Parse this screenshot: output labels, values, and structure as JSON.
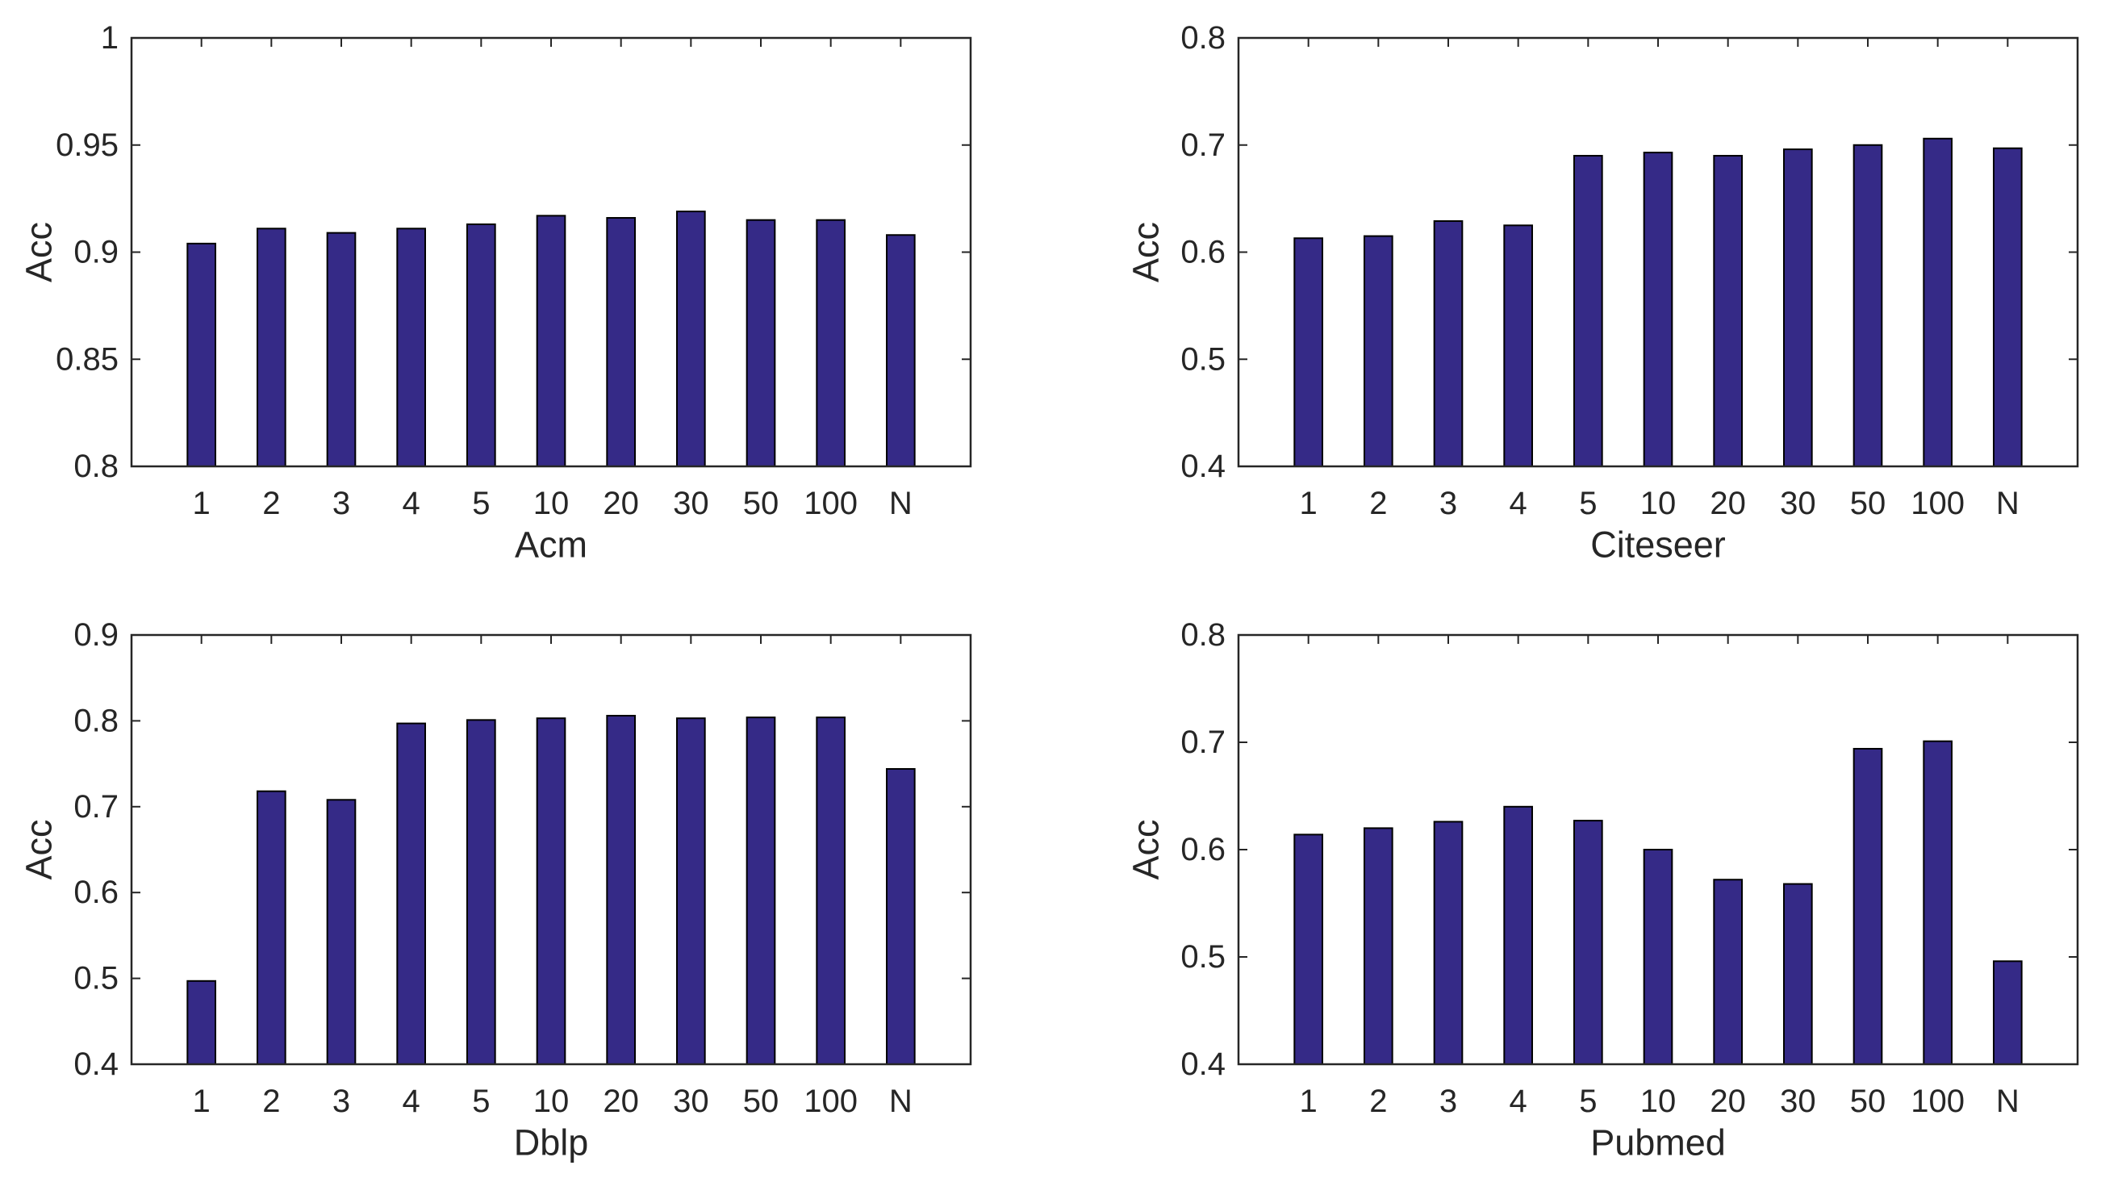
{
  "figure": {
    "background": "#ffffff",
    "bar_fill_color": "#352A87",
    "bar_edge_color": "#000000",
    "axis_color": "#262626",
    "text_color": "#262626"
  },
  "chart_data": [
    {
      "id": "acm",
      "type": "bar",
      "title": "",
      "xlabel": "Acm",
      "ylabel": "Acc",
      "categories": [
        "1",
        "2",
        "3",
        "4",
        "5",
        "10",
        "20",
        "30",
        "50",
        "100",
        "N"
      ],
      "values": [
        0.904,
        0.911,
        0.909,
        0.911,
        0.913,
        0.917,
        0.916,
        0.919,
        0.915,
        0.915,
        0.908
      ],
      "ylim": [
        0.8,
        1.0
      ],
      "yticks": [
        0.8,
        0.85,
        0.9,
        0.95,
        1.0
      ],
      "ytick_labels": [
        "0.8",
        "0.85",
        "0.9",
        "0.95",
        "1"
      ],
      "grid": false,
      "legend": null,
      "bar_width_fraction": 0.4
    },
    {
      "id": "citeseer",
      "type": "bar",
      "title": "",
      "xlabel": "Citeseer",
      "ylabel": "Acc",
      "categories": [
        "1",
        "2",
        "3",
        "4",
        "5",
        "10",
        "20",
        "30",
        "50",
        "100",
        "N"
      ],
      "values": [
        0.613,
        0.615,
        0.629,
        0.625,
        0.69,
        0.693,
        0.69,
        0.696,
        0.7,
        0.706,
        0.697
      ],
      "ylim": [
        0.4,
        0.8
      ],
      "yticks": [
        0.4,
        0.5,
        0.6,
        0.7,
        0.8
      ],
      "ytick_labels": [
        "0.4",
        "0.5",
        "0.6",
        "0.7",
        "0.8"
      ],
      "grid": false,
      "legend": null,
      "bar_width_fraction": 0.4
    },
    {
      "id": "dblp",
      "type": "bar",
      "title": "",
      "xlabel": "Dblp",
      "ylabel": "Acc",
      "categories": [
        "1",
        "2",
        "3",
        "4",
        "5",
        "10",
        "20",
        "30",
        "50",
        "100",
        "N"
      ],
      "values": [
        0.497,
        0.718,
        0.708,
        0.797,
        0.801,
        0.803,
        0.806,
        0.803,
        0.804,
        0.804,
        0.744
      ],
      "ylim": [
        0.4,
        0.9
      ],
      "yticks": [
        0.4,
        0.5,
        0.6,
        0.7,
        0.8,
        0.9
      ],
      "ytick_labels": [
        "0.4",
        "0.5",
        "0.6",
        "0.7",
        "0.8",
        "0.9"
      ],
      "grid": false,
      "legend": null,
      "bar_width_fraction": 0.4
    },
    {
      "id": "pubmed",
      "type": "bar",
      "title": "",
      "xlabel": "Pubmed",
      "ylabel": "Acc",
      "categories": [
        "1",
        "2",
        "3",
        "4",
        "5",
        "10",
        "20",
        "30",
        "50",
        "100",
        "N"
      ],
      "values": [
        0.614,
        0.62,
        0.626,
        0.64,
        0.627,
        0.6,
        0.572,
        0.568,
        0.694,
        0.701,
        0.496
      ],
      "ylim": [
        0.4,
        0.8
      ],
      "yticks": [
        0.4,
        0.5,
        0.6,
        0.7,
        0.8
      ],
      "ytick_labels": [
        "0.4",
        "0.5",
        "0.6",
        "0.7",
        "0.8"
      ],
      "grid": false,
      "legend": null,
      "bar_width_fraction": 0.4
    }
  ]
}
